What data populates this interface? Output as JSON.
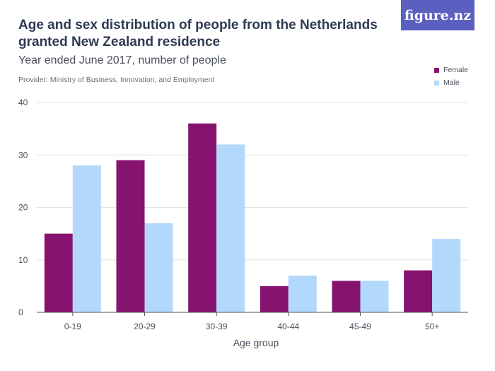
{
  "header": {
    "title": "Age and sex distribution of people from the Netherlands granted New Zealand residence",
    "subtitle": "Year ended June 2017, number of people",
    "provider": "Provider: Ministry of Business, Innovation, and Employment",
    "logo_text": "figure.nz"
  },
  "colors": {
    "female": "#86136f",
    "male": "#b2d9fb",
    "grid": "#e2e2e2",
    "axis": "#555555",
    "logo_bg": "#5b5fbf"
  },
  "chart_data": {
    "type": "bar",
    "categories": [
      "0-19",
      "20-29",
      "30-39",
      "40-44",
      "45-49",
      "50+"
    ],
    "series": [
      {
        "name": "Female",
        "values": [
          15,
          29,
          36,
          5,
          6,
          8
        ]
      },
      {
        "name": "Male",
        "values": [
          28,
          17,
          32,
          7,
          6,
          14
        ]
      }
    ],
    "xlabel": "Age group",
    "ylabel": "",
    "ylim": [
      0,
      40
    ],
    "yticks": [
      0,
      10,
      20,
      30,
      40
    ],
    "grid": true,
    "legend": "top-right"
  }
}
